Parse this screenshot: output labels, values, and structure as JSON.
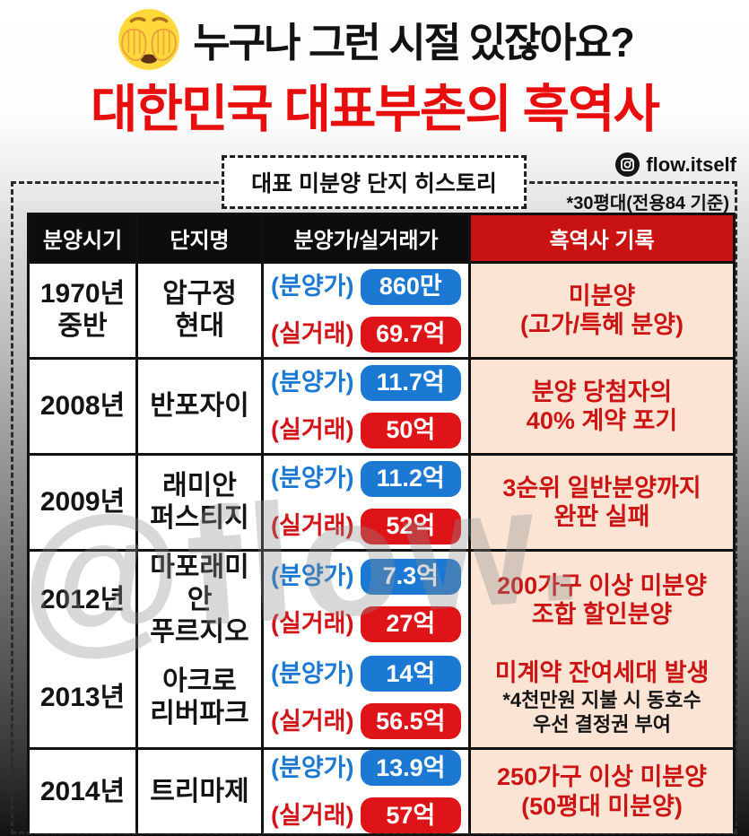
{
  "header": {
    "emoji": "face-with-peeking-eye",
    "title_black": "누구나 그런 시절 있잖아요?",
    "title_red": "대한민국 대표부촌의 흑역사",
    "badge_label": "대표 미분양 단지 히스토리",
    "instagram_handle": "flow.itself",
    "note": "*30평대(전용84 기준)"
  },
  "table": {
    "columns": [
      "분양시기",
      "단지명",
      "분양가/실거래가",
      "흑역사 기록"
    ],
    "price_labels": {
      "sale": "(분양가)",
      "actual": "(실거래)"
    },
    "rows": [
      {
        "period": "1970년\n중반",
        "name": "압구정\n현대",
        "sale_price": "860만",
        "actual_price": "69.7억",
        "history": "미분양\n(고가/특혜 분양)",
        "history_note": ""
      },
      {
        "period": "2008년",
        "name": "반포자이",
        "sale_price": "11.7억",
        "actual_price": "50억",
        "history": "분양 당첨자의\n40% 계약 포기",
        "history_note": ""
      },
      {
        "period": "2009년",
        "name": "래미안\n퍼스티지",
        "sale_price": "11.2억",
        "actual_price": "52억",
        "history": "3순위 일반분양까지\n완판 실패",
        "history_note": ""
      },
      {
        "period": "2012년",
        "name": "마포래미안\n푸르지오",
        "sale_price": "7.3억",
        "actual_price": "27억",
        "history": "200가구 이상 미분양\n조합 할인분양",
        "history_note": ""
      },
      {
        "period": "2013년",
        "name": "아크로\n리버파크",
        "sale_price": "14억",
        "actual_price": "56.5억",
        "history": "미계약 잔여세대 발생",
        "history_note": "*4천만원 지불 시 동호수\n우선 결정권 부여"
      },
      {
        "period": "2014년",
        "name": "트리마제",
        "sale_price": "13.9억",
        "actual_price": "57억",
        "history": "250가구 이상 미분양\n(50평대 미분양)",
        "history_note": ""
      }
    ]
  },
  "watermark": "@flow.",
  "colors": {
    "title_red": "#e80e0e",
    "header_black": "#0d0d0d",
    "header_red": "#c91313",
    "pill_blue": "#1b79d4",
    "pill_red": "#df1418",
    "history_bg": "#fbe4d4",
    "history_text_red": "#cc1414"
  }
}
